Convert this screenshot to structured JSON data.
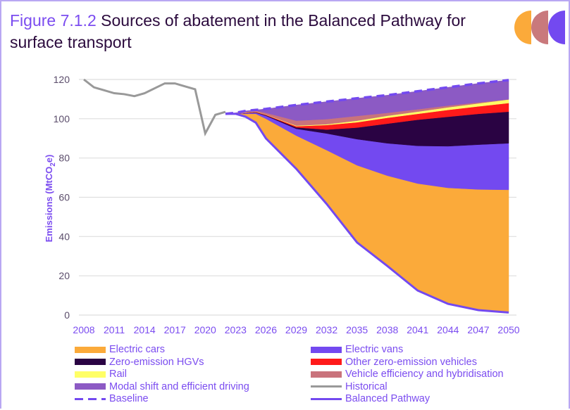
{
  "title": {
    "figure_label": "Figure 7.1.2",
    "text": "Sources of abatement in the Balanced Pathway for surface transport"
  },
  "logo_colors": [
    "#fbaa3a",
    "#c9797c",
    "#7349f0"
  ],
  "chart_data": {
    "type": "area",
    "ylabel": "Emissions (MtCO",
    "ylabel_sub": "2",
    "ylabel_end": "e)",
    "ylim": [
      0,
      120
    ],
    "yticks": [
      "0",
      "20",
      "40",
      "60",
      "80",
      "100",
      "120"
    ],
    "xlim": [
      2008,
      2050
    ],
    "xticks": [
      "2008",
      "2011",
      "2014",
      "2017",
      "2020",
      "2023",
      "2026",
      "2029",
      "2032",
      "2035",
      "2038",
      "2041",
      "2044",
      "2047",
      "2050"
    ],
    "grid": "horizontal",
    "legend_placement": "bottom",
    "historical": {
      "name": "Historical",
      "color": "#999999",
      "x": [
        2008,
        2009,
        2010,
        2011,
        2012,
        2013,
        2014,
        2015,
        2016,
        2017,
        2018,
        2019,
        2020,
        2021,
        2022
      ],
      "y": [
        120,
        116,
        114.5,
        113,
        112.5,
        111.5,
        113,
        115.5,
        118,
        118,
        116.5,
        115,
        92.5,
        102,
        103.5
      ]
    },
    "x": [
      2022,
      2023,
      2024,
      2025,
      2026,
      2029,
      2032,
      2035,
      2038,
      2041,
      2044,
      2047,
      2050
    ],
    "balanced_pathway": {
      "name": "Balanced Pathway",
      "color": "#7349f0",
      "y": [
        102.5,
        102.5,
        101,
        98,
        90,
        74.5,
        56.6,
        37,
        25,
        12.5,
        5.7,
        2.5,
        1.3
      ]
    },
    "baseline": {
      "name": "Baseline",
      "color": "#7349f0",
      "y": [
        102.5,
        103,
        104,
        104.5,
        105,
        107,
        108.7,
        110.4,
        112,
        114,
        116,
        118,
        119.7
      ]
    },
    "series": [
      {
        "name": "Electric cars",
        "color": "#fbaa3a",
        "values": [
          0,
          0,
          1.5,
          4.5,
          10,
          16.9,
          27.4,
          39.3,
          46,
          54.5,
          59.1,
          61.5,
          62.5
        ]
      },
      {
        "name": "Electric vans",
        "color": "#7349f0",
        "values": [
          0,
          0,
          0.3,
          0.6,
          1.5,
          3.5,
          8.5,
          13.3,
          16.5,
          19.2,
          21.2,
          22.8,
          23.7
        ]
      },
      {
        "name": "Zero-emission HGVs",
        "color": "#2a0343",
        "values": [
          0,
          0,
          0.1,
          0.2,
          0.3,
          0.7,
          2,
          5.9,
          10,
          13.3,
          15,
          15.7,
          16.1
        ]
      },
      {
        "name": "Other zero-emission vehicles",
        "color": "#ff1a1a",
        "values": [
          0,
          0,
          0.1,
          0.2,
          0.2,
          0.6,
          2.3,
          2.7,
          3,
          3,
          3.5,
          3.8,
          4.4
        ]
      },
      {
        "name": "Rail",
        "color": "#ffff66",
        "values": [
          0,
          0,
          0,
          0.1,
          0.1,
          0.3,
          0.4,
          0.8,
          1,
          1.1,
          1.3,
          1.5,
          1.8
        ]
      },
      {
        "name": "Vehicle efficiency and hybridisation",
        "color": "#c9737c",
        "values": [
          0,
          0,
          0.5,
          0.5,
          0.9,
          2.5,
          2.6,
          2.4,
          1.5,
          1.2,
          0.9,
          0.5,
          0.1
        ]
      },
      {
        "name": "Modal shift and efficient driving",
        "color": "#8c5ac4",
        "values": [
          0,
          0.5,
          0.5,
          0.4,
          2,
          8,
          8.9,
          9,
          9,
          9.2,
          9.3,
          9.7,
          9.8
        ]
      }
    ],
    "legend": [
      {
        "name": "Electric cars",
        "kind": "fill",
        "color": "#fbaa3a"
      },
      {
        "name": "Electric vans",
        "kind": "fill",
        "color": "#7349f0"
      },
      {
        "name": "Zero-emission HGVs",
        "kind": "fill",
        "color": "#2a0343"
      },
      {
        "name": "Other zero-emission vehicles",
        "kind": "fill",
        "color": "#ff1a1a"
      },
      {
        "name": "Rail",
        "kind": "fill",
        "color": "#ffff66"
      },
      {
        "name": "Vehicle efficiency and hybridisation",
        "kind": "fill",
        "color": "#c9737c"
      },
      {
        "name": "Modal shift and efficient driving",
        "kind": "fill",
        "color": "#8c5ac4"
      },
      {
        "name": "Historical",
        "kind": "line",
        "color": "#999999"
      },
      {
        "name": "Baseline",
        "kind": "dash",
        "color": "#7349f0"
      },
      {
        "name": "Balanced Pathway",
        "kind": "line",
        "color": "#7349f0"
      }
    ]
  }
}
